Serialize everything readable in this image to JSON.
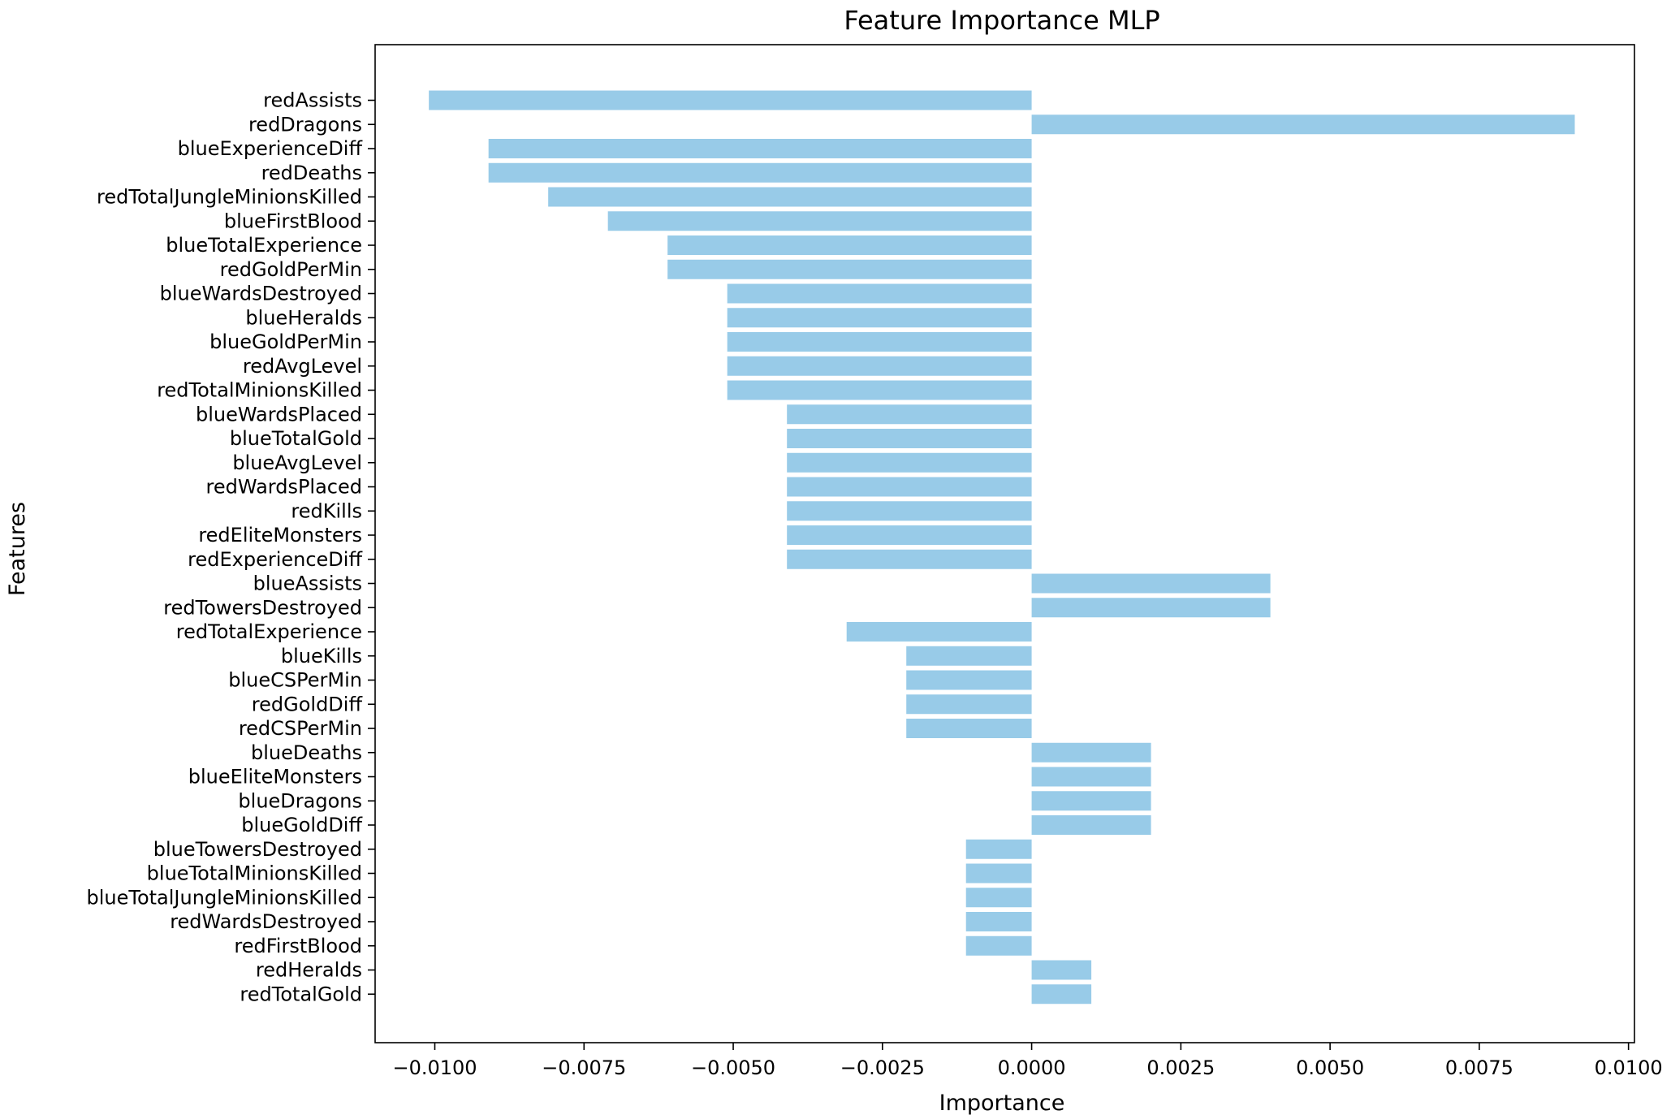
{
  "chart_data": {
    "type": "bar",
    "orientation": "horizontal",
    "title": "Feature Importance MLP",
    "xlabel": "Importance",
    "ylabel": "Features",
    "xlim": [
      -0.011,
      0.0101
    ],
    "xticks": [
      -0.01,
      -0.0075,
      -0.005,
      -0.0025,
      0.0,
      0.0025,
      0.005,
      0.0075,
      0.01
    ],
    "xtick_labels": [
      "−0.0100",
      "−0.0075",
      "−0.0050",
      "−0.0025",
      "0.0000",
      "0.0025",
      "0.0050",
      "0.0075",
      "0.0100"
    ],
    "grid": false,
    "bar_color": "#98cbe8",
    "categories": [
      "redAssists",
      "redDragons",
      "blueExperienceDiff",
      "redDeaths",
      "redTotalJungleMinionsKilled",
      "blueFirstBlood",
      "blueTotalExperience",
      "redGoldPerMin",
      "blueWardsDestroyed",
      "blueHeralds",
      "blueGoldPerMin",
      "redAvgLevel",
      "redTotalMinionsKilled",
      "blueWardsPlaced",
      "blueTotalGold",
      "blueAvgLevel",
      "redWardsPlaced",
      "redKills",
      "redEliteMonsters",
      "redExperienceDiff",
      "blueAssists",
      "redTowersDestroyed",
      "redTotalExperience",
      "blueKills",
      "blueCSPerMin",
      "redGoldDiff",
      "redCSPerMin",
      "blueDeaths",
      "blueEliteMonsters",
      "blueDragons",
      "blueGoldDiff",
      "blueTowersDestroyed",
      "blueTotalMinionsKilled",
      "blueTotalJungleMinionsKilled",
      "redWardsDestroyed",
      "redFirstBlood",
      "redHeralds",
      "redTotalGold"
    ],
    "values": [
      -0.0101,
      0.0091,
      -0.0091,
      -0.0091,
      -0.0081,
      -0.0071,
      -0.0061,
      -0.0061,
      -0.0051,
      -0.0051,
      -0.0051,
      -0.0051,
      -0.0051,
      -0.0041,
      -0.0041,
      -0.0041,
      -0.0041,
      -0.0041,
      -0.0041,
      -0.0041,
      0.004,
      0.004,
      -0.0031,
      -0.0021,
      -0.0021,
      -0.0021,
      -0.0021,
      0.002,
      0.002,
      0.002,
      0.002,
      -0.0011,
      -0.0011,
      -0.0011,
      -0.0011,
      -0.0011,
      0.001,
      0.001
    ]
  }
}
